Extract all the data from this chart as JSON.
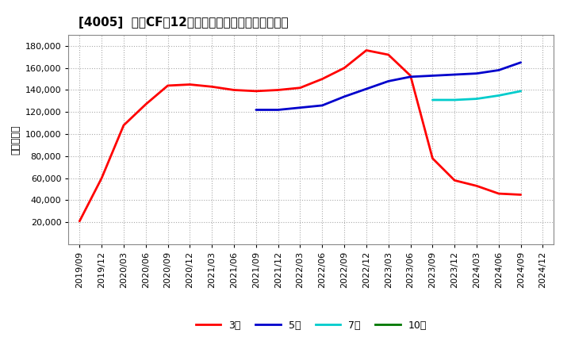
{
  "title": "[4005]  投資CFの12か月移動合計の標準偏差の推移",
  "ylabel": "（百万円）",
  "ylim": [
    0,
    190000
  ],
  "yticks": [
    20000,
    40000,
    60000,
    80000,
    100000,
    120000,
    140000,
    160000,
    180000
  ],
  "background_color": "#ffffff",
  "grid_color": "#aaaaaa",
  "series": {
    "3年": {
      "color": "#ff0000",
      "data_x": [
        "2019/09",
        "2019/12",
        "2020/03",
        "2020/06",
        "2020/09",
        "2020/12",
        "2021/03",
        "2021/06",
        "2021/09",
        "2021/12",
        "2022/03",
        "2022/06",
        "2022/09",
        "2022/12",
        "2023/03",
        "2023/06",
        "2023/09",
        "2023/12",
        "2024/03",
        "2024/06",
        "2024/09"
      ],
      "data_y": [
        21000,
        60000,
        108000,
        127000,
        144000,
        145000,
        143000,
        140000,
        139000,
        140000,
        142000,
        150000,
        160000,
        176000,
        172000,
        153000,
        78000,
        58000,
        53000,
        46000,
        45000
      ]
    },
    "5年": {
      "color": "#0000cc",
      "data_x": [
        "2021/09",
        "2021/12",
        "2022/03",
        "2022/06",
        "2022/09",
        "2022/12",
        "2023/03",
        "2023/06",
        "2023/09",
        "2023/12",
        "2024/03",
        "2024/06",
        "2024/09"
      ],
      "data_y": [
        122000,
        122000,
        124000,
        126000,
        134000,
        141000,
        148000,
        152000,
        153000,
        154000,
        155000,
        158000,
        165000
      ]
    },
    "7年": {
      "color": "#00cccc",
      "data_x": [
        "2023/09",
        "2023/12",
        "2024/03",
        "2024/06",
        "2024/09"
      ],
      "data_y": [
        131000,
        131000,
        132000,
        135000,
        139000
      ]
    },
    "10年": {
      "color": "#007700",
      "data_x": [],
      "data_y": []
    }
  },
  "xticks": [
    "2019/09",
    "2019/12",
    "2020/03",
    "2020/06",
    "2020/09",
    "2020/12",
    "2021/03",
    "2021/06",
    "2021/09",
    "2021/12",
    "2022/03",
    "2022/06",
    "2022/09",
    "2022/12",
    "2023/03",
    "2023/06",
    "2023/09",
    "2023/12",
    "2024/03",
    "2024/06",
    "2024/09",
    "2024/12"
  ],
  "legend_labels": [
    "3年",
    "5年",
    "7年",
    "10年"
  ],
  "legend_colors": [
    "#ff0000",
    "#0000cc",
    "#00cccc",
    "#007700"
  ]
}
